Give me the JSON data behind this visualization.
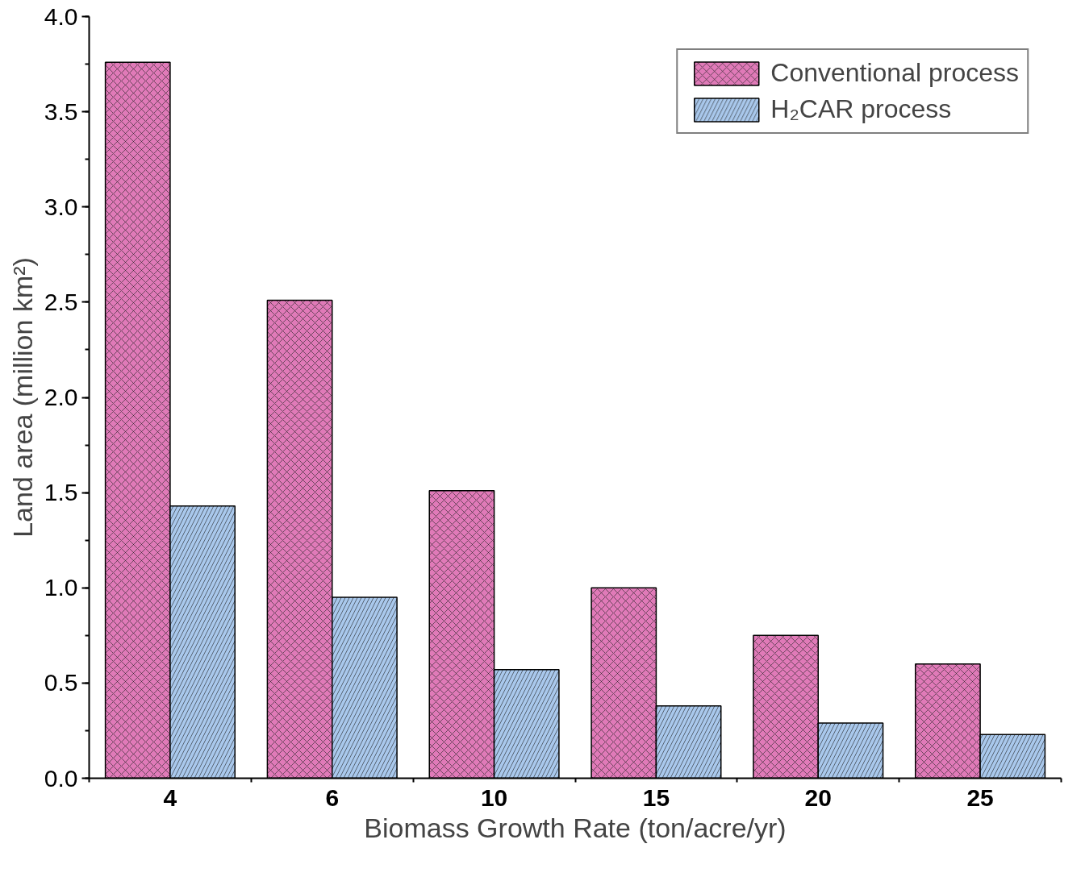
{
  "chart_data": {
    "type": "bar",
    "xlabel": "Biomass Growth Rate (ton/acre/yr)",
    "ylabel": "Land area (million km²)",
    "categories": [
      "4",
      "6",
      "10",
      "15",
      "20",
      "25"
    ],
    "series": [
      {
        "name": "Conventional process",
        "color": "#e07ab8",
        "values": [
          3.76,
          2.51,
          1.51,
          1.0,
          0.75,
          0.6
        ]
      },
      {
        "name": "H₂CAR process",
        "color": "#a9c8ec",
        "values": [
          1.43,
          0.95,
          0.57,
          0.38,
          0.29,
          0.23
        ]
      }
    ],
    "ylim": [
      0,
      4.0
    ],
    "yticks": [
      {
        "value": 0,
        "label": "0.0"
      },
      {
        "value": 0.5,
        "label": "0.5"
      },
      {
        "value": 1.0,
        "label": "1.0"
      },
      {
        "value": 1.5,
        "label": "1.5"
      },
      {
        "value": 2.0,
        "label": "2.0"
      },
      {
        "value": 2.5,
        "label": "2.5"
      },
      {
        "value": 3.0,
        "label": "3.0"
      },
      {
        "value": 3.5,
        "label": "3.5"
      },
      {
        "value": 4.0,
        "label": "4.0"
      }
    ],
    "grid": false,
    "legend": "top right"
  }
}
